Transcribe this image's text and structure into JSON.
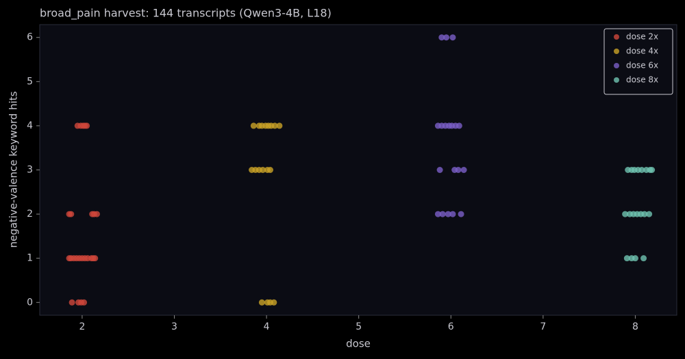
{
  "chart_data": {
    "type": "scatter",
    "title": "broad_pain harvest: 144 transcripts (Qwen3-4B, L18)",
    "x_label": "dose",
    "y_label": "negative-valence keyword hits",
    "xlim": [
      1.54,
      8.45
    ],
    "ylim": [
      -0.29,
      6.29
    ],
    "xticks": [
      2,
      3,
      4,
      5,
      6,
      7,
      8
    ],
    "yticks": [
      0,
      1,
      2,
      3,
      4,
      5,
      6
    ],
    "legend": "upper right",
    "series": [
      {
        "name": "dose 2x",
        "color": "#d0473b",
        "x": [
          1.95,
          1.985,
          2.01,
          2.03,
          2.05,
          1.86,
          1.88,
          2.11,
          2.13,
          2.16,
          1.86,
          1.88,
          1.91,
          1.94,
          1.97,
          2.0,
          2.03,
          2.06,
          2.1,
          2.12,
          2.14,
          1.89,
          1.96,
          1.99,
          2.02
        ],
        "values": [
          4,
          4,
          4,
          4,
          4,
          2,
          2,
          2,
          2,
          2,
          1,
          1,
          1,
          1,
          1,
          1,
          1,
          1,
          1,
          1,
          1,
          0,
          0,
          0,
          0
        ]
      },
      {
        "name": "dose 4x",
        "color": "#c9a227",
        "x": [
          3.86,
          3.92,
          3.95,
          3.99,
          4.02,
          4.05,
          4.09,
          4.14,
          3.84,
          3.88,
          3.92,
          3.96,
          4.01,
          4.04,
          3.95,
          4.01,
          4.04,
          4.08
        ],
        "values": [
          4,
          4,
          4,
          4,
          4,
          4,
          4,
          4,
          3,
          3,
          3,
          3,
          3,
          3,
          0,
          0,
          0,
          0
        ]
      },
      {
        "name": "dose 6x",
        "color": "#7b5fc7",
        "x": [
          5.9,
          5.95,
          6.02,
          5.86,
          5.9,
          5.94,
          5.98,
          6.01,
          6.05,
          6.09,
          5.88,
          6.04,
          6.08,
          6.14,
          5.86,
          5.91,
          5.97,
          6.02,
          6.11
        ],
        "values": [
          6,
          6,
          6,
          4,
          4,
          4,
          4,
          4,
          4,
          4,
          3,
          3,
          3,
          3,
          2,
          2,
          2,
          2,
          2
        ]
      },
      {
        "name": "dose 8x",
        "color": "#6fc3b0",
        "x": [
          7.92,
          7.96,
          7.99,
          8.03,
          8.07,
          8.12,
          8.16,
          8.18,
          7.89,
          7.94,
          7.98,
          8.02,
          8.06,
          8.1,
          8.15,
          7.91,
          7.96,
          8.0,
          8.09
        ],
        "values": [
          3,
          3,
          3,
          3,
          3,
          3,
          3,
          3,
          2,
          2,
          2,
          2,
          2,
          2,
          2,
          1,
          1,
          1,
          1
        ]
      }
    ]
  }
}
